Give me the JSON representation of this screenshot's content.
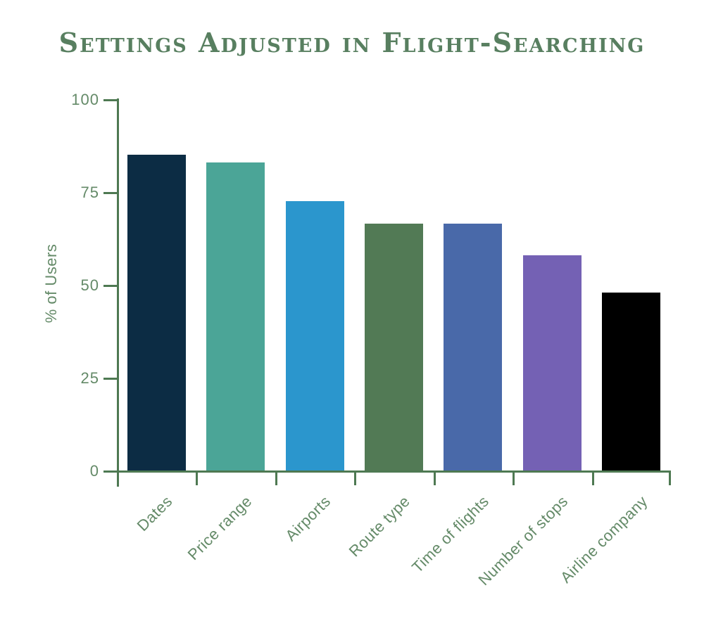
{
  "title": "Settings Adjusted in Flight-Searching",
  "colors": {
    "title_green": "#587f60",
    "axis_green": "#4e7952",
    "tick_label_green": "#648a68",
    "background": "#ffffff"
  },
  "chart_data": {
    "type": "bar",
    "title": "Settings Adjusted in Flight-Searching",
    "xlabel": "",
    "ylabel": "% of Users",
    "categories": [
      "Dates",
      "Price range",
      "Airports",
      "Route type",
      "Time of flights",
      "Number of stops",
      "Airline company"
    ],
    "values": [
      85,
      83,
      72.5,
      66.5,
      66.5,
      58,
      48
    ],
    "bar_colors": [
      "#0c2c44",
      "#4ba597",
      "#2b96cd",
      "#527a55",
      "#4969a9",
      "#7461b4",
      "#000000"
    ],
    "ylim": [
      0,
      100
    ],
    "y_ticks": [
      0,
      25,
      50,
      75,
      100
    ],
    "grid": false,
    "legend": "none",
    "x_tick_label_rotation_deg": -45
  }
}
